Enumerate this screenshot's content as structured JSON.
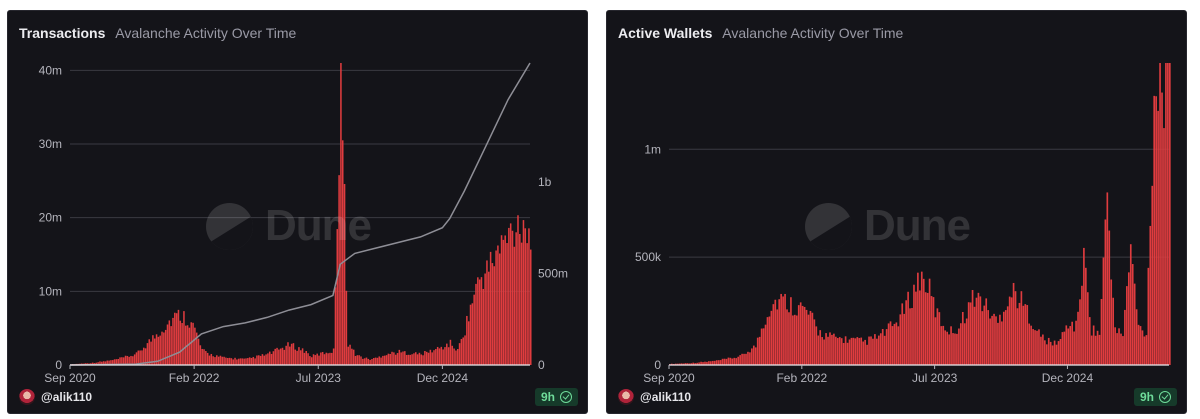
{
  "chart_data": [
    {
      "type": "bar",
      "title": "Transactions",
      "subtitle": "Avalanche Activity Over Time",
      "colors": {
        "bars": "#e03c3f",
        "line": "#8e8e96",
        "grid": "#3a3a42",
        "text": "#b4b4bc"
      },
      "x_tick_labels": [
        "Sep 2020",
        "Feb 2022",
        "Jul 2023",
        "Dec 2024"
      ],
      "y_tick_labels": [
        "0",
        "10m",
        "20m",
        "30m",
        "40m"
      ],
      "y_right_tick_labels": [
        "0",
        "500m",
        "1b"
      ],
      "ylim": [
        0,
        41000000
      ],
      "y_right_lim": [
        0,
        1650000000
      ],
      "x_range": [
        "2020-09",
        "2025-12"
      ],
      "series": [
        {
          "kind": "bar",
          "axis": "left",
          "x": [
            "2020-09",
            "2020-12",
            "2021-03",
            "2021-06",
            "2021-08",
            "2021-09",
            "2021-10",
            "2021-11",
            "2021-12",
            "2022-01",
            "2022-02",
            "2022-03",
            "2022-04",
            "2022-06",
            "2022-09",
            "2022-12",
            "2023-03",
            "2023-05",
            "2023-06",
            "2023-07",
            "2023-09",
            "2023-10",
            "2023-11",
            "2023-12",
            "2024-01",
            "2024-02",
            "2024-03",
            "2024-04",
            "2024-06",
            "2024-09",
            "2024-12",
            "2025-01",
            "2025-02",
            "2025-03",
            "2025-04",
            "2025-05",
            "2025-06",
            "2025-07",
            "2025-08",
            "2025-09",
            "2025-10",
            "2025-11",
            "2025-12"
          ],
          "values": [
            100000,
            300000,
            700000,
            1500000,
            3500000,
            4500000,
            5500000,
            6500000,
            7000000,
            6500000,
            5000000,
            2000000,
            1500000,
            1000000,
            800000,
            1500000,
            2800000,
            2000000,
            1200000,
            1500000,
            2000000,
            41000000,
            3000000,
            1500000,
            1000000,
            800000,
            1000000,
            1500000,
            1800000,
            1500000,
            2500000,
            3000000,
            2000000,
            5000000,
            9000000,
            12000000,
            13000000,
            15000000,
            16500000,
            18000000,
            19500000,
            20500000,
            17000000
          ]
        },
        {
          "kind": "line",
          "axis": "right",
          "x": [
            "2020-09",
            "2021-06",
            "2021-09",
            "2021-12",
            "2022-03",
            "2022-06",
            "2022-09",
            "2022-12",
            "2023-03",
            "2023-06",
            "2023-09",
            "2023-10",
            "2023-11",
            "2023-12",
            "2024-03",
            "2024-06",
            "2024-09",
            "2024-12",
            "2025-01",
            "2025-03",
            "2025-06",
            "2025-09",
            "2025-12"
          ],
          "values": [
            0,
            5000000,
            20000000,
            70000000,
            170000000,
            210000000,
            230000000,
            260000000,
            300000000,
            330000000,
            380000000,
            550000000,
            580000000,
            610000000,
            640000000,
            670000000,
            700000000,
            750000000,
            800000000,
            950000000,
            1200000000,
            1450000000,
            1650000000
          ]
        }
      ],
      "watermark": "Dune",
      "author": "@alik110",
      "refresh_badge": "9h"
    },
    {
      "type": "bar",
      "title": "Active Wallets",
      "subtitle": "Avalanche Activity Over Time",
      "colors": {
        "bars": "#e03c3f",
        "grid": "#3a3a42",
        "text": "#b4b4bc"
      },
      "x_tick_labels": [
        "Sep 2020",
        "Feb 2022",
        "Jul 2023",
        "Dec 2024"
      ],
      "y_tick_labels": [
        "0",
        "500k",
        "1m"
      ],
      "ylim": [
        0,
        1400000
      ],
      "x_range": [
        "2020-09",
        "2026-01"
      ],
      "series": [
        {
          "kind": "bar",
          "axis": "left",
          "x": [
            "2020-09",
            "2020-12",
            "2021-03",
            "2021-06",
            "2021-08",
            "2021-09",
            "2021-10",
            "2021-11",
            "2021-12",
            "2022-01",
            "2022-02",
            "2022-03",
            "2022-04",
            "2022-05",
            "2022-06",
            "2022-08",
            "2022-10",
            "2022-12",
            "2023-02",
            "2023-04",
            "2023-05",
            "2023-06",
            "2023-07",
            "2023-08",
            "2023-09",
            "2023-10",
            "2023-11",
            "2023-12",
            "2024-01",
            "2024-02",
            "2024-03",
            "2024-04",
            "2024-05",
            "2024-06",
            "2024-07",
            "2024-08",
            "2024-09",
            "2024-10",
            "2024-11",
            "2024-12",
            "2025-01",
            "2025-02",
            "2025-03",
            "2025-04",
            "2025-05",
            "2025-06",
            "2025-07",
            "2025-08",
            "2025-09",
            "2025-10",
            "2025-11",
            "2025-12",
            "2026-01"
          ],
          "values": [
            5000,
            10000,
            20000,
            40000,
            90000,
            200000,
            290000,
            310000,
            300000,
            280000,
            270000,
            230000,
            160000,
            140000,
            130000,
            120000,
            110000,
            140000,
            200000,
            330000,
            420000,
            380000,
            260000,
            190000,
            160000,
            180000,
            260000,
            330000,
            300000,
            250000,
            200000,
            300000,
            350000,
            300000,
            240000,
            160000,
            120000,
            100000,
            120000,
            200000,
            180000,
            500000,
            170000,
            150000,
            800000,
            160000,
            150000,
            560000,
            180000,
            150000,
            1300000,
            1370000,
            1280000
          ]
        }
      ],
      "watermark": "Dune",
      "author": "@alik110",
      "refresh_badge": "9h"
    }
  ]
}
